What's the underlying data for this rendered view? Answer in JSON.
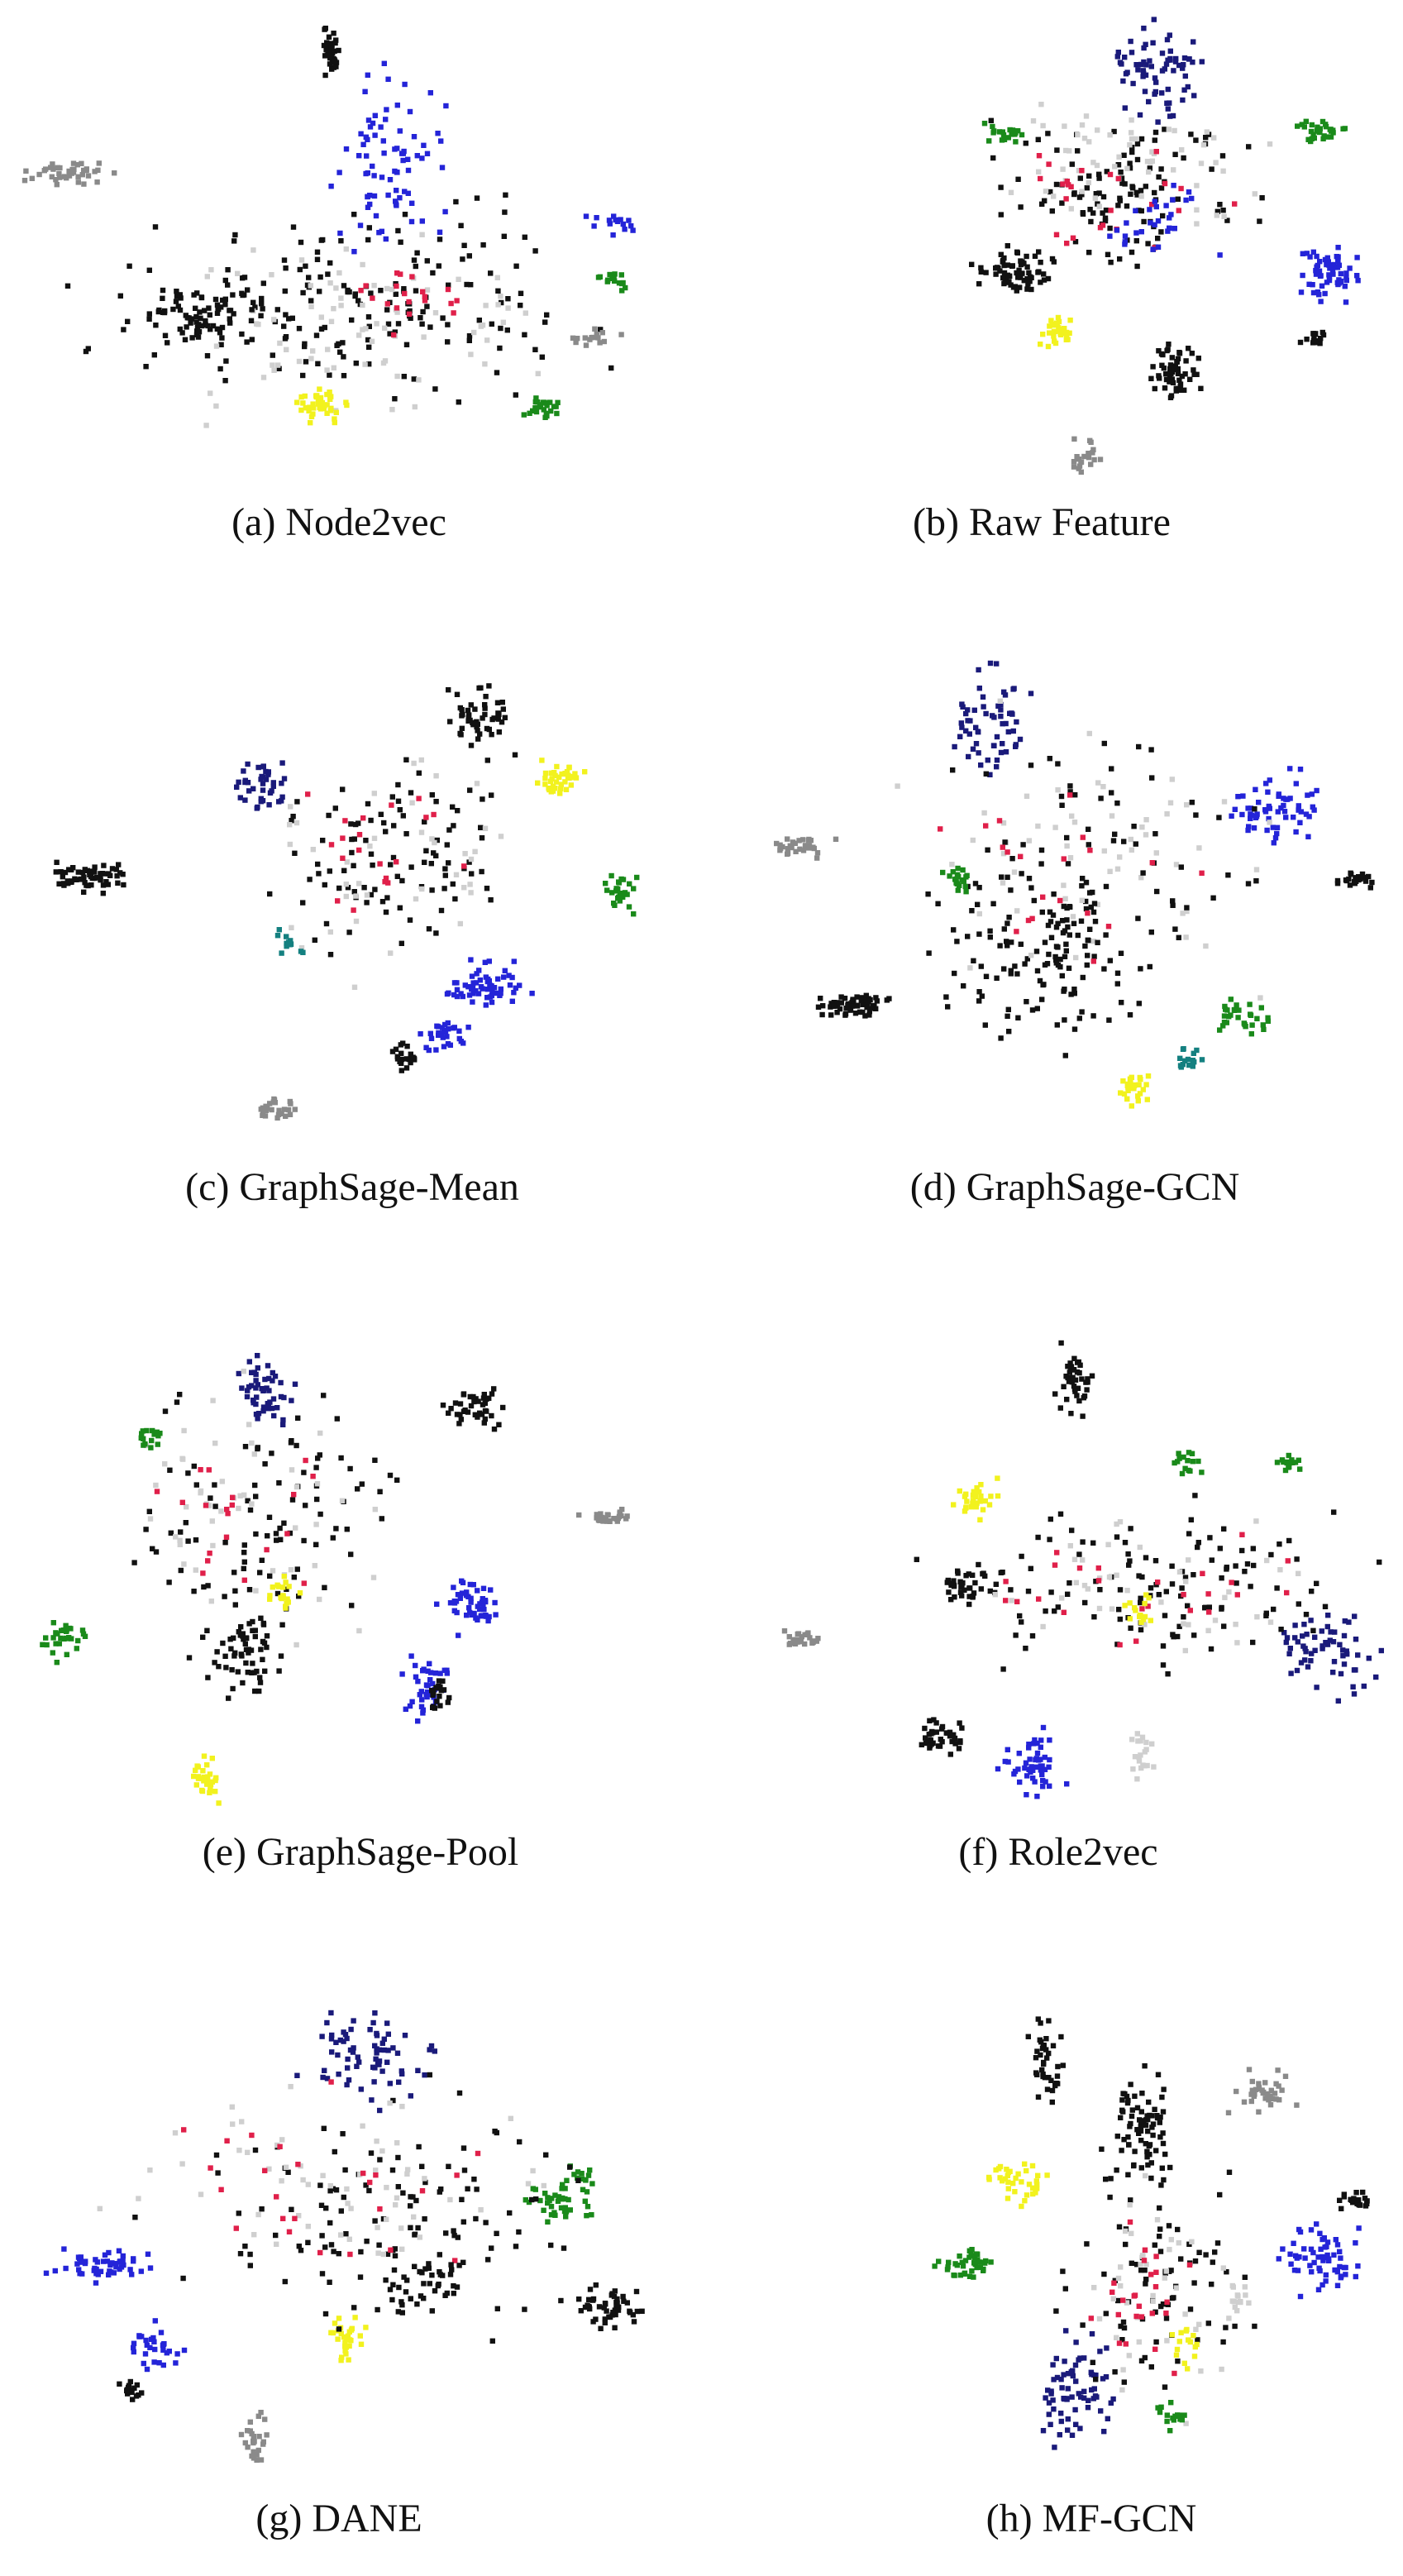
{
  "panels": [
    {
      "caption": "(a) Node2vec"
    },
    {
      "caption": "(b) Raw Feature"
    },
    {
      "caption": "(c) GraphSage-Mean"
    },
    {
      "caption": "(d) GraphSage-GCN"
    },
    {
      "caption": "(e) GraphSage-Pool"
    },
    {
      "caption": "(f) Role2vec"
    },
    {
      "caption": "(g) DANE"
    },
    {
      "caption": "(h) MF-GCN"
    }
  ]
}
